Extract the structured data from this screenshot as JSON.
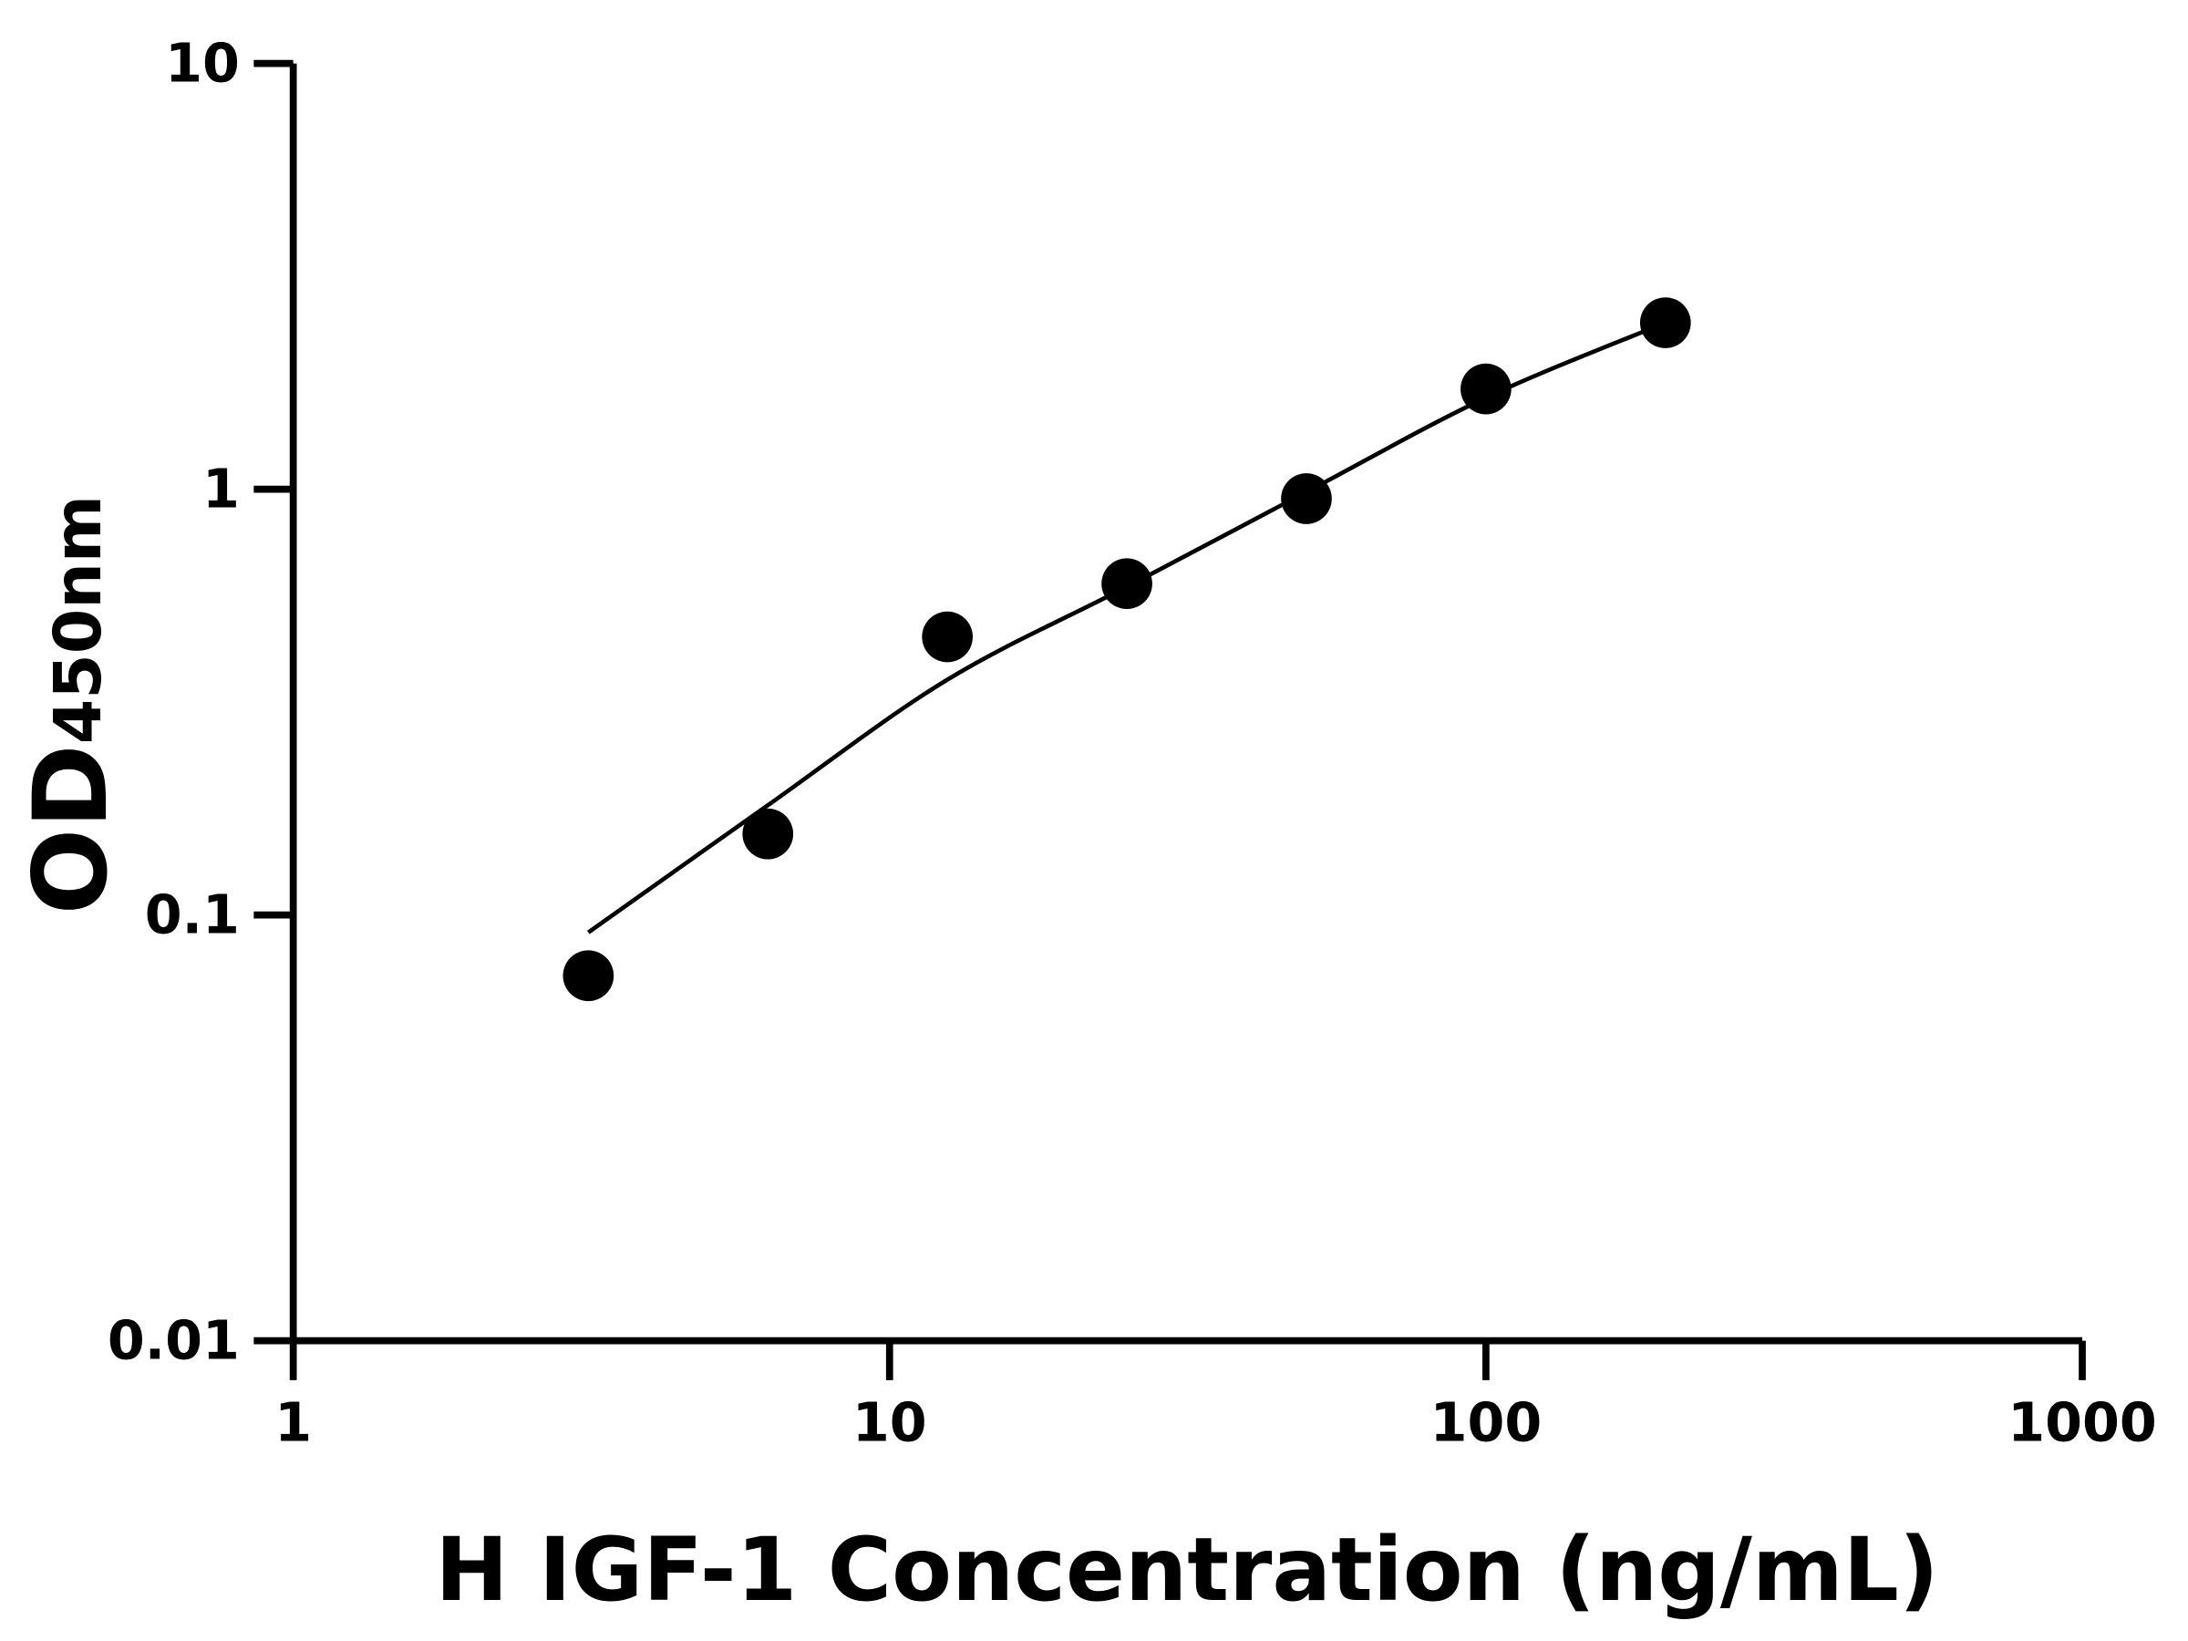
{
  "chart_data": {
    "type": "scatter",
    "title": "",
    "xlabel": "H IGF-1 Concentration (ng/mL)",
    "ylabel_main": "OD",
    "ylabel_sub": "450nm",
    "x_scale": "log",
    "y_scale": "log",
    "xlim": [
      1,
      1000
    ],
    "ylim": [
      0.01,
      10
    ],
    "x_ticks": [
      1,
      10,
      100,
      1000
    ],
    "x_tick_labels": [
      "1",
      "10",
      "100",
      "1000"
    ],
    "y_ticks": [
      0.01,
      0.1,
      1,
      10
    ],
    "y_tick_labels": [
      "0.01",
      "0.1",
      "1",
      "10"
    ],
    "grid": false,
    "legend": "none",
    "colors": {
      "points": "#000000",
      "curve": "#000000",
      "axes": "#000000"
    },
    "points": {
      "x": [
        3.125,
        6.25,
        12.5,
        25,
        50,
        100,
        200
      ],
      "y": [
        0.072,
        0.155,
        0.45,
        0.6,
        0.95,
        1.72,
        2.46
      ]
    },
    "fit_curve": {
      "x": [
        3.125,
        6.25,
        12.5,
        25,
        50,
        100,
        200
      ],
      "y": [
        0.091,
        0.181,
        0.357,
        0.59,
        0.985,
        1.64,
        2.46
      ]
    }
  }
}
